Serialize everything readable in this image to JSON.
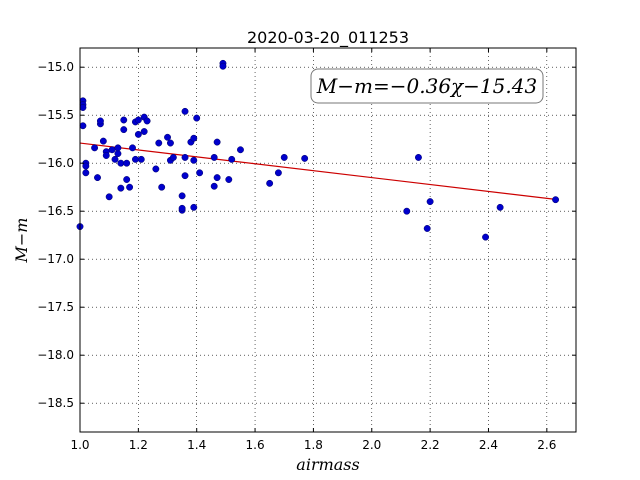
{
  "chart_data": {
    "type": "scatter",
    "title": "2020-03-20_011253",
    "xlabel": "airmass",
    "ylabel": "M−m",
    "xlim": [
      1.0,
      2.7
    ],
    "ylim": [
      -18.8,
      -14.8
    ],
    "xticks": [
      1.0,
      1.2,
      1.4,
      1.6,
      1.8,
      2.0,
      2.2,
      2.4,
      2.6
    ],
    "xtick_labels": [
      "1.0",
      "1.2",
      "1.4",
      "1.6",
      "1.8",
      "2.0",
      "2.2",
      "2.4",
      "2.6"
    ],
    "yticks": [
      -15.0,
      -15.5,
      -16.0,
      -16.5,
      -17.0,
      -17.5,
      -18.0,
      -18.5
    ],
    "ytick_labels": [
      "−15.0",
      "−15.5",
      "−16.0",
      "−16.5",
      "−17.0",
      "−17.5",
      "−18.0",
      "−18.5"
    ],
    "grid": true,
    "annotation": "M−m=−0.36χ−15.43",
    "annotation_position": "top-right",
    "point_color": "#0000cc",
    "fit_color": "#cc0000",
    "fit": {
      "slope": -0.36,
      "intercept": -15.43,
      "x_range": [
        1.0,
        2.63
      ]
    },
    "points": [
      [
        1.0,
        -16.66
      ],
      [
        1.01,
        -15.35
      ],
      [
        1.01,
        -15.39
      ],
      [
        1.01,
        -15.42
      ],
      [
        1.01,
        -15.61
      ],
      [
        1.02,
        -16.0
      ],
      [
        1.02,
        -16.03
      ],
      [
        1.02,
        -16.1
      ],
      [
        1.05,
        -15.84
      ],
      [
        1.06,
        -16.15
      ],
      [
        1.07,
        -15.59
      ],
      [
        1.07,
        -15.56
      ],
      [
        1.08,
        -15.77
      ],
      [
        1.09,
        -15.88
      ],
      [
        1.09,
        -15.92
      ],
      [
        1.1,
        -16.35
      ],
      [
        1.11,
        -15.86
      ],
      [
        1.12,
        -15.96
      ],
      [
        1.13,
        -15.9
      ],
      [
        1.13,
        -15.84
      ],
      [
        1.14,
        -16.26
      ],
      [
        1.14,
        -16.0
      ],
      [
        1.15,
        -15.55
      ],
      [
        1.15,
        -15.65
      ],
      [
        1.16,
        -16.0
      ],
      [
        1.16,
        -16.17
      ],
      [
        1.17,
        -16.25
      ],
      [
        1.18,
        -15.84
      ],
      [
        1.19,
        -15.96
      ],
      [
        1.19,
        -15.57
      ],
      [
        1.2,
        -15.55
      ],
      [
        1.2,
        -15.7
      ],
      [
        1.21,
        -15.96
      ],
      [
        1.22,
        -15.52
      ],
      [
        1.22,
        -15.67
      ],
      [
        1.23,
        -15.56
      ],
      [
        1.26,
        -16.06
      ],
      [
        1.27,
        -15.79
      ],
      [
        1.28,
        -16.25
      ],
      [
        1.3,
        -15.73
      ],
      [
        1.31,
        -15.79
      ],
      [
        1.31,
        -15.97
      ],
      [
        1.32,
        -15.94
      ],
      [
        1.35,
        -16.49
      ],
      [
        1.35,
        -16.47
      ],
      [
        1.35,
        -16.34
      ],
      [
        1.36,
        -16.13
      ],
      [
        1.36,
        -15.94
      ],
      [
        1.36,
        -15.46
      ],
      [
        1.38,
        -15.78
      ],
      [
        1.39,
        -15.74
      ],
      [
        1.39,
        -15.97
      ],
      [
        1.39,
        -16.46
      ],
      [
        1.4,
        -15.53
      ],
      [
        1.41,
        -16.1
      ],
      [
        1.46,
        -16.24
      ],
      [
        1.46,
        -15.94
      ],
      [
        1.47,
        -16.15
      ],
      [
        1.47,
        -15.78
      ],
      [
        1.49,
        -14.96
      ],
      [
        1.49,
        -14.99
      ],
      [
        1.51,
        -16.17
      ],
      [
        1.52,
        -15.96
      ],
      [
        1.55,
        -15.86
      ],
      [
        1.65,
        -16.21
      ],
      [
        1.68,
        -16.1
      ],
      [
        1.7,
        -15.94
      ],
      [
        1.77,
        -15.95
      ],
      [
        2.12,
        -16.5
      ],
      [
        2.16,
        -15.94
      ],
      [
        2.19,
        -16.68
      ],
      [
        2.2,
        -16.4
      ],
      [
        2.39,
        -16.77
      ],
      [
        2.44,
        -16.46
      ],
      [
        2.63,
        -16.38
      ]
    ]
  }
}
